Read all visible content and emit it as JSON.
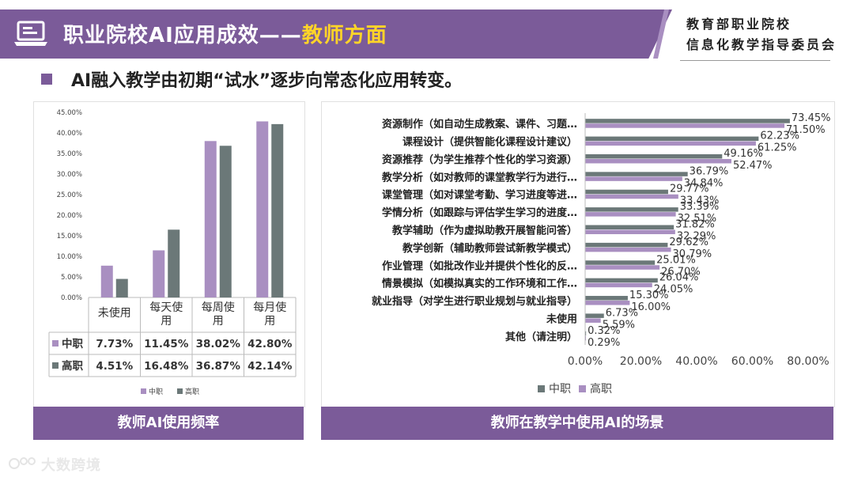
{
  "header": {
    "title_main": "职业院校AI应用成效——",
    "title_highlight": "教师方面",
    "org_line1": "教育部职业院校",
    "org_line2": "信息化教学指导委员会"
  },
  "subtitle": "AI融入教学由初期“试水”逐步向常态化应用转变。",
  "captions": {
    "left": "教师AI使用频率",
    "right": "教师在教学中使用AI的场景"
  },
  "watermark": "大数跨境",
  "colors": {
    "accent": "#7b5b99",
    "zhongzhi": "#a98fc1",
    "gaozhi": "#6b7878",
    "highlight": "#ffd428"
  },
  "chart_data": [
    {
      "type": "bar",
      "title": "教师AI使用频率",
      "categories": [
        "未使用",
        "每天使用",
        "每周使用",
        "每月使用"
      ],
      "series": [
        {
          "name": "中职",
          "values": [
            7.73,
            11.45,
            38.02,
            42.8
          ],
          "labels": [
            "7.73%",
            "11.45%",
            "38.02%",
            "42.80%"
          ]
        },
        {
          "name": "高职",
          "values": [
            4.51,
            16.48,
            36.87,
            42.14
          ],
          "labels": [
            "4.51%",
            "16.48%",
            "36.87%",
            "42.14%"
          ]
        }
      ],
      "yticks": [
        "0.00%",
        "5.00%",
        "10.00%",
        "15.00%",
        "20.00%",
        "25.00%",
        "30.00%",
        "35.00%",
        "40.00%",
        "45.00%"
      ],
      "ylim": [
        0,
        45
      ],
      "legend": [
        "中职",
        "高职"
      ],
      "has_data_table": true
    },
    {
      "type": "bar",
      "orientation": "horizontal",
      "title": "教师在教学中使用AI的场景",
      "categories": [
        "资源制作（如自动生成教案、课件、习题…",
        "课程设计（提供智能化课程设计建议）",
        "资源推荐（为学生推荐个性化的学习资源）",
        "教学分析（如对教师的课堂教学行为进行…",
        "课堂管理（如对课堂考勤、学习进度等进…",
        "学情分析（如跟踪与评估学生学习的进度…",
        "教学辅助（作为虚拟助教开展智能问答）",
        "教学创新（辅助教师尝试新教学模式）",
        "作业管理（如批改作业并提供个性化的反…",
        "情景模拟（如模拟真实的工作环境和工作…",
        "就业指导（对学生进行职业规划与就业指导）",
        "未使用",
        "其他（请注明）"
      ],
      "series": [
        {
          "name": "中职",
          "values": [
            73.45,
            62.23,
            49.16,
            36.79,
            29.77,
            33.39,
            31.82,
            29.62,
            25.01,
            26.04,
            15.3,
            6.73,
            0.32
          ],
          "labels": [
            "73.45%",
            "62.23%",
            "49.16%",
            "36.79%",
            "29.77%",
            "33.39%",
            "31.82%",
            "29.62%",
            "25.01%",
            "26.04%",
            "15.30%",
            "6.73%",
            "0.32%"
          ]
        },
        {
          "name": "高职",
          "values": [
            71.5,
            61.25,
            52.47,
            34.84,
            33.43,
            32.51,
            32.29,
            30.79,
            26.7,
            24.05,
            16.0,
            5.59,
            0.29
          ],
          "labels": [
            "71.50%",
            "61.25%",
            "52.47%",
            "34.84%",
            "33.43%",
            "32.51%",
            "32.29%",
            "30.79%",
            "26.70%",
            "24.05%",
            "16.00%",
            "5.59%",
            "0.29%"
          ]
        }
      ],
      "xticks": [
        "0.00%",
        "20.00%",
        "40.00%",
        "60.00%",
        "80.00%"
      ],
      "xlim": [
        0,
        80
      ],
      "legend": [
        "中职",
        "高职"
      ]
    }
  ]
}
